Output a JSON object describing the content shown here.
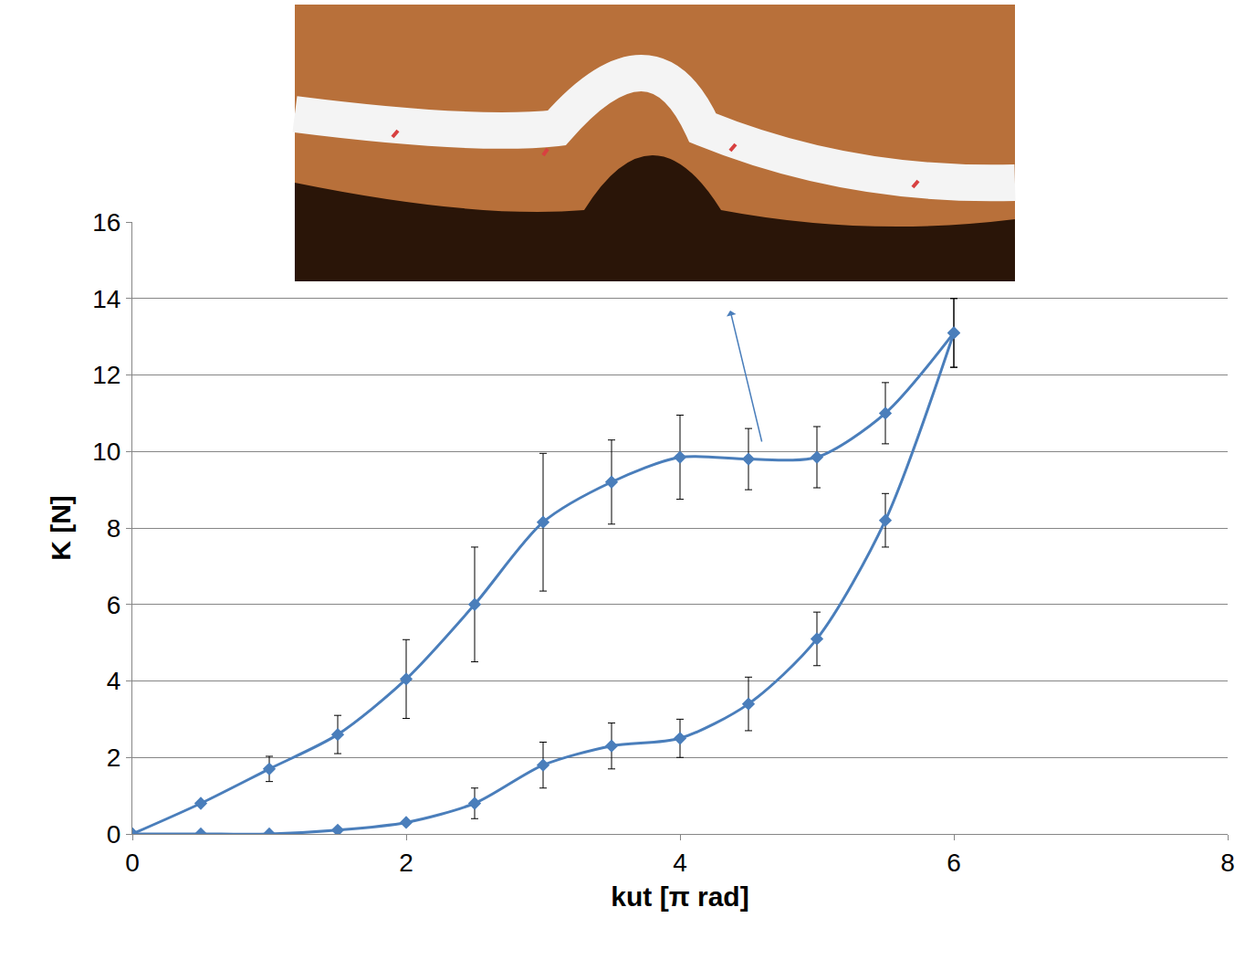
{
  "chart_data": {
    "type": "line",
    "x_label": "kut [π rad]",
    "y_label": "K [N]",
    "xlim": [
      0,
      8
    ],
    "xticks": [
      0,
      2,
      4,
      6,
      8
    ],
    "ylim": [
      0,
      16
    ],
    "yticks": [
      0,
      2,
      4,
      6,
      8,
      10,
      12,
      14,
      16
    ],
    "grid": "y",
    "marker": "diamond",
    "line_style": "smooth",
    "color": "#4a7ebb",
    "series": [
      {
        "x": [
          0,
          0.5,
          1,
          1.5,
          2,
          2.5,
          3,
          3.5,
          4,
          4.5,
          5,
          5.5,
          6
        ],
        "values": [
          0,
          0.8,
          1.7,
          2.6,
          4.05,
          6.0,
          8.15,
          9.2,
          9.85,
          9.8,
          9.85,
          11.0,
          13.1
        ],
        "errors": [
          0,
          0.05,
          0.33,
          0.5,
          1.03,
          1.5,
          1.8,
          1.1,
          1.1,
          0.8,
          0.8,
          0.8,
          0.9
        ]
      },
      {
        "x": [
          0,
          0.5,
          1,
          1.5,
          2,
          2.5,
          3,
          3.5,
          4,
          4.5,
          5,
          5.5,
          6
        ],
        "values": [
          0,
          0,
          0,
          0.1,
          0.3,
          0.8,
          1.8,
          2.3,
          2.5,
          3.4,
          5.1,
          8.2,
          13.1
        ],
        "errors": [
          0,
          0,
          0,
          0,
          0,
          0.4,
          0.6,
          0.6,
          0.5,
          0.7,
          0.7,
          0.7,
          0.9
        ]
      }
    ]
  }
}
